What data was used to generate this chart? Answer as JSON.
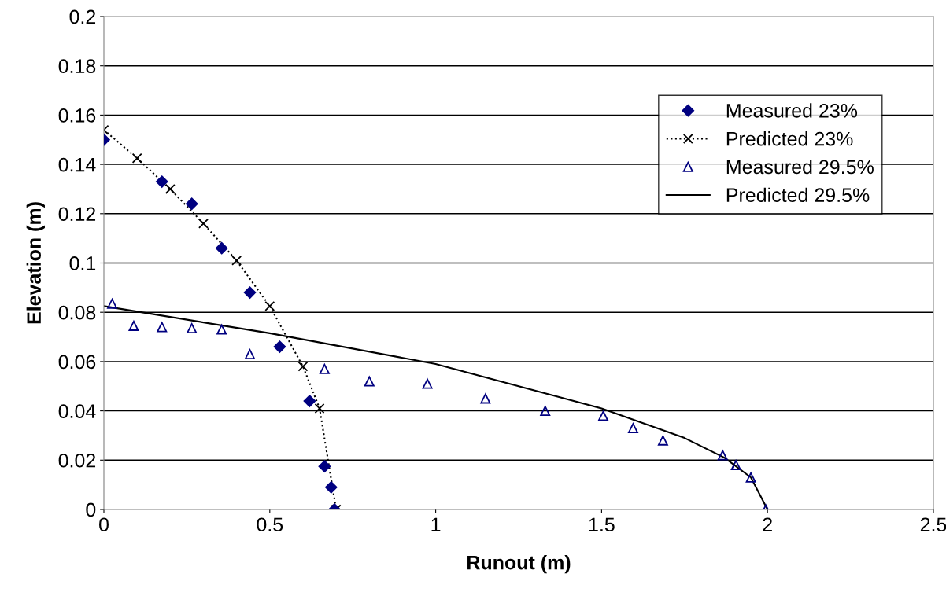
{
  "chart_data": {
    "type": "scatter",
    "xlabel": "Runout (m)",
    "ylabel": "Elevation (m)",
    "xlim": [
      0,
      2.5
    ],
    "xticks": [
      0,
      0.5,
      1,
      1.5,
      2,
      2.5
    ],
    "ylim": [
      0,
      0.2
    ],
    "yticks": [
      0,
      0.02,
      0.04,
      0.06,
      0.08,
      0.1,
      0.12,
      0.14,
      0.16,
      0.18,
      0.2
    ],
    "grid": "y",
    "legend": "top right",
    "series": [
      {
        "name": "Measured 23%",
        "marker": "diamond",
        "color": "#000080",
        "x": [
          0,
          0.175,
          0.265,
          0.355,
          0.44,
          0.53,
          0.62,
          0.665,
          0.685,
          0.695
        ],
        "values": [
          0.15,
          0.133,
          0.124,
          0.106,
          0.088,
          0.066,
          0.044,
          0.0175,
          0.009,
          0
        ]
      },
      {
        "name": "Predicted 23%",
        "type": "line",
        "marker": "cross",
        "line_style": "dotted",
        "color": "#000000",
        "x": [
          0,
          0.1,
          0.2,
          0.3,
          0.4,
          0.5,
          0.6,
          0.65,
          0.7
        ],
        "values": [
          0.154,
          0.1425,
          0.13,
          0.116,
          0.101,
          0.0825,
          0.058,
          0.041,
          0
        ]
      },
      {
        "name": "Measured 29.5%",
        "marker": "triangle",
        "color": "#000080",
        "x": [
          0.025,
          0.09,
          0.175,
          0.265,
          0.355,
          0.44,
          0.665,
          0.8,
          0.975,
          1.15,
          1.33,
          1.505,
          1.595,
          1.685,
          1.865,
          1.905,
          1.95,
          1.995
        ],
        "values": [
          0.0835,
          0.0745,
          0.074,
          0.0735,
          0.073,
          0.063,
          0.057,
          0.052,
          0.051,
          0.045,
          0.04,
          0.038,
          0.033,
          0.028,
          0.022,
          0.018,
          0.013,
          0
        ]
      },
      {
        "name": "Predicted 29.5%",
        "type": "line",
        "marker": "none",
        "line_style": "solid",
        "color": "#000000",
        "x": [
          0,
          0.5,
          1.0,
          1.5,
          1.75,
          1.87,
          1.95,
          2.0
        ],
        "values": [
          0.0825,
          0.0715,
          0.059,
          0.041,
          0.029,
          0.021,
          0.013,
          0
        ]
      }
    ]
  }
}
